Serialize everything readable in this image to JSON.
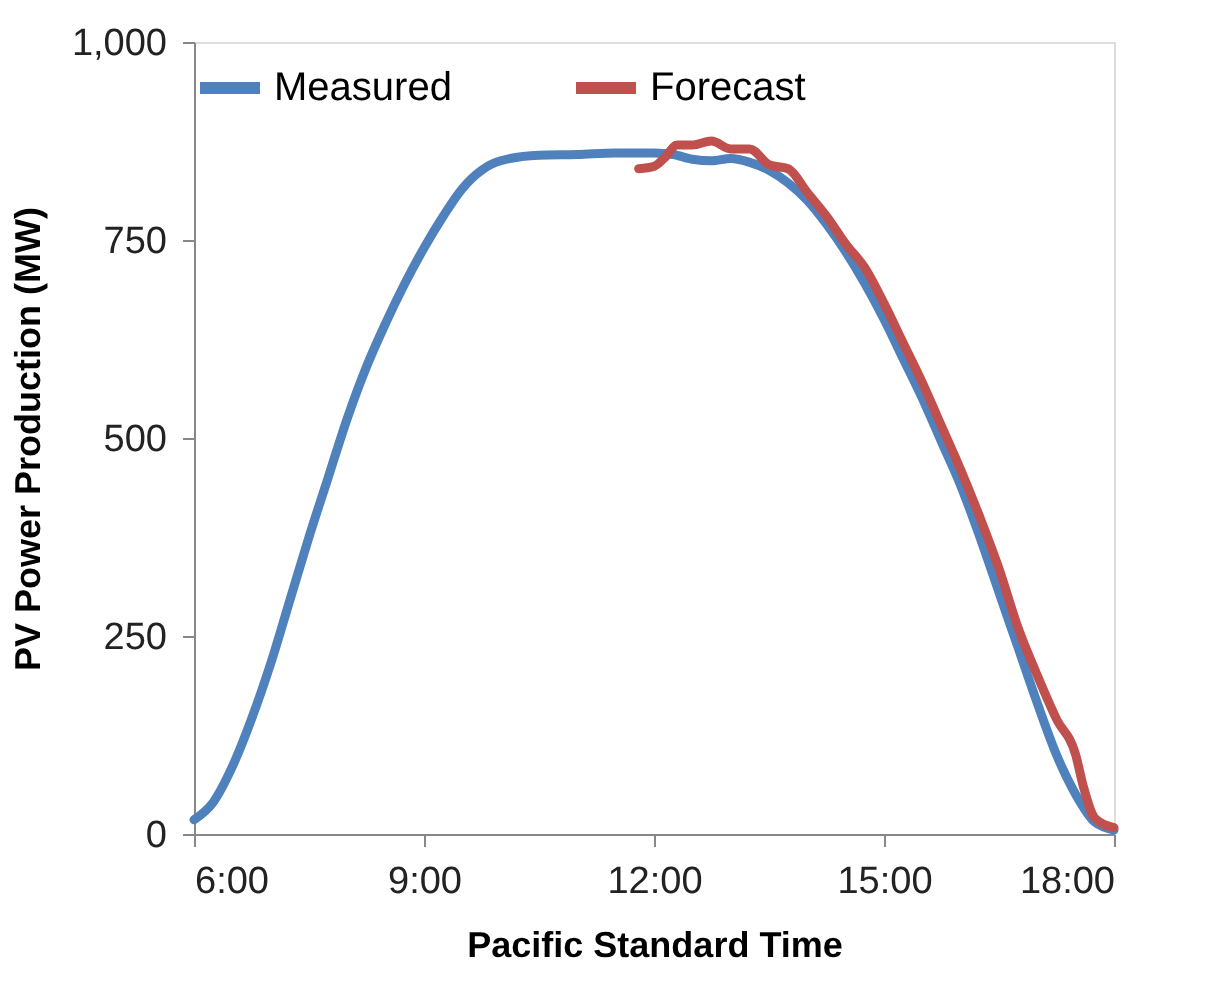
{
  "chart_data": {
    "type": "line",
    "xlabel": "Pacific Standard Time",
    "ylabel": "PV Power Production (MW)",
    "xlim": [
      6,
      18
    ],
    "xticks": [
      {
        "value": 6,
        "label": "6:00"
      },
      {
        "value": 9,
        "label": "9:00"
      },
      {
        "value": 12,
        "label": "12:00"
      },
      {
        "value": 15,
        "label": "15:00"
      },
      {
        "value": 18,
        "label": "18:00"
      }
    ],
    "ylim": [
      0,
      1000
    ],
    "yticks": [
      0,
      250,
      500,
      750,
      {
        "value": 1000,
        "label": "1,000"
      }
    ],
    "grid": false,
    "legend": "top",
    "marker": "none",
    "line_style": "solid",
    "series": [
      {
        "name": "Measured",
        "color": "#4f81bd",
        "x": [
          6.0,
          6.25,
          6.5,
          6.75,
          7.0,
          7.25,
          7.5,
          7.75,
          8.0,
          8.25,
          8.5,
          8.75,
          9.0,
          9.25,
          9.5,
          9.75,
          10.0,
          10.5,
          11.0,
          11.5,
          12.0,
          12.25,
          12.5,
          12.75,
          13.0,
          13.25,
          13.5,
          13.75,
          14.0,
          14.25,
          14.5,
          14.75,
          15.0,
          15.25,
          15.5,
          15.75,
          16.0,
          16.25,
          16.5,
          16.75,
          17.0,
          17.25,
          17.5,
          17.75,
          18.0
        ],
        "values": [
          18,
          40,
          85,
          145,
          215,
          295,
          375,
          450,
          525,
          590,
          645,
          695,
          740,
          780,
          815,
          838,
          850,
          857,
          858,
          860,
          860,
          858,
          852,
          850,
          853,
          848,
          838,
          822,
          800,
          770,
          735,
          695,
          650,
          600,
          550,
          495,
          440,
          375,
          305,
          235,
          165,
          100,
          50,
          15,
          5
        ]
      },
      {
        "name": "Forecast",
        "color": "#c0504d",
        "x": [
          11.8,
          12.0,
          12.15,
          12.3,
          12.5,
          12.75,
          13.0,
          13.25,
          13.5,
          13.75,
          14.0,
          14.25,
          14.5,
          14.75,
          15.0,
          15.25,
          15.5,
          15.75,
          16.0,
          16.25,
          16.5,
          16.75,
          17.0,
          17.25,
          17.5,
          17.6,
          17.75,
          18.0
        ],
        "values": [
          840,
          843,
          855,
          870,
          870,
          875,
          865,
          865,
          845,
          840,
          810,
          780,
          745,
          715,
          670,
          620,
          570,
          515,
          460,
          400,
          335,
          260,
          200,
          145,
          100,
          60,
          20,
          8
        ]
      }
    ]
  }
}
